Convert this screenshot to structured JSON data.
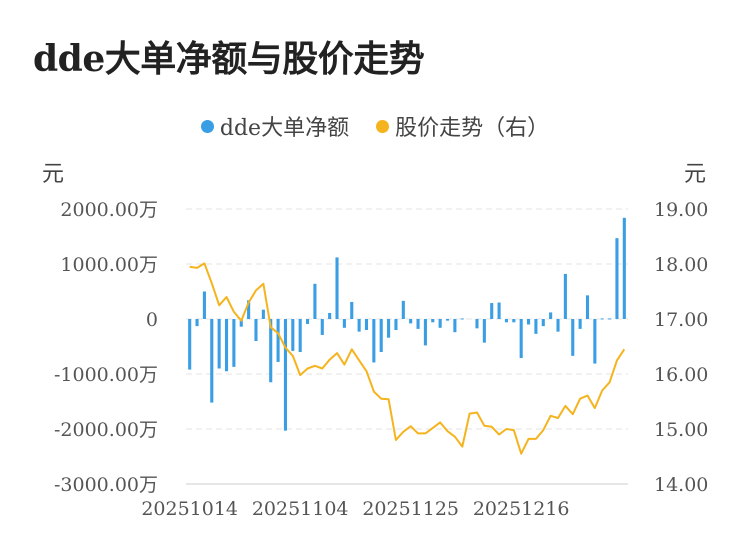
{
  "title": "dde大单净额与股价走势",
  "legend": {
    "bar_label": "dde大单净额",
    "line_label": "股价走势（右）"
  },
  "units": {
    "left": "元",
    "right": "元"
  },
  "colors": {
    "bar": "#3a9ee4",
    "line": "#f5b41e",
    "grid": "#e3e3e3",
    "axis": "#cccccc"
  },
  "chart_data": {
    "type": "bar+line",
    "title": "dde大单净额与股价走势",
    "y_left": {
      "label": "元",
      "range": [
        -3000,
        2000
      ],
      "ticks": [
        2000,
        1000,
        0,
        -1000,
        -2000,
        -3000
      ],
      "tick_labels": [
        "2000.00万",
        "1000.00万",
        "0",
        "-1000.00万",
        "-2000.00万",
        "-3000.00万"
      ]
    },
    "y_right": {
      "label": "元",
      "range": [
        14.0,
        19.0
      ],
      "ticks": [
        19,
        18,
        17,
        16,
        15,
        14
      ],
      "tick_labels": [
        "19.00",
        "18.00",
        "17.00",
        "16.00",
        "15.00",
        "14.00"
      ]
    },
    "x_tick_labels": [
      {
        "index": 0,
        "label": "20251014"
      },
      {
        "index": 15,
        "label": "20251104"
      },
      {
        "index": 30,
        "label": "20251125"
      },
      {
        "index": 45,
        "label": "20251216"
      }
    ],
    "series": [
      {
        "name": "dde大单净额",
        "kind": "bar",
        "axis": "left",
        "values": [
          -920,
          -130,
          500,
          -1520,
          -900,
          -950,
          -870,
          -140,
          340,
          -400,
          170,
          -1150,
          -780,
          -2030,
          -580,
          -600,
          -90,
          640,
          -290,
          110,
          1120,
          -160,
          310,
          -230,
          -200,
          -790,
          -600,
          -340,
          -200,
          330,
          -80,
          -180,
          -480,
          -60,
          -160,
          -30,
          -240,
          10,
          0,
          -170,
          -430,
          290,
          300,
          -60,
          -60,
          -710,
          -100,
          -270,
          -130,
          120,
          -230,
          820,
          -670,
          -180,
          430,
          -810,
          10,
          10,
          1470,
          1840
        ]
      },
      {
        "name": "股价走势（右）",
        "kind": "line",
        "axis": "right",
        "values": [
          17.95,
          17.93,
          18.01,
          17.65,
          17.25,
          17.4,
          17.13,
          16.97,
          17.3,
          17.52,
          17.64,
          16.85,
          16.74,
          16.48,
          16.33,
          15.98,
          16.1,
          16.15,
          16.1,
          16.26,
          16.38,
          16.17,
          16.45,
          16.25,
          16.05,
          15.68,
          15.55,
          15.54,
          14.8,
          14.95,
          15.05,
          14.92,
          14.92,
          15.02,
          15.12,
          14.96,
          14.86,
          14.68,
          15.28,
          15.3,
          15.06,
          15.04,
          14.9,
          15.0,
          14.98,
          14.55,
          14.82,
          14.82,
          14.98,
          15.24,
          15.2,
          15.42,
          15.27,
          15.55,
          15.61,
          15.38,
          15.7,
          15.85,
          16.25,
          16.45
        ]
      }
    ]
  }
}
